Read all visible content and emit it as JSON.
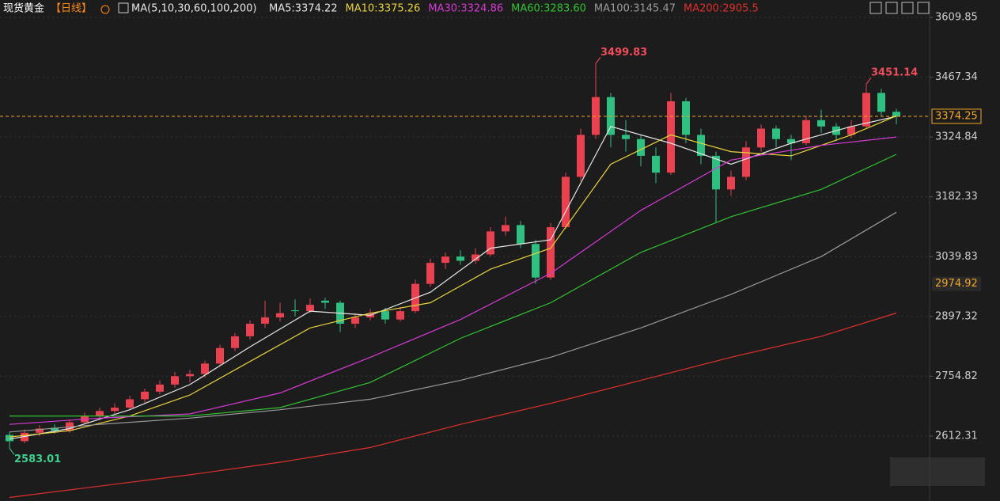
{
  "header": {
    "title": "现货黄金",
    "period": "【日线】",
    "indicator": "MA(5,10,30,60,100,200)"
  },
  "chart_data": {
    "type": "candlestick",
    "ylim": [
      2457.5,
      3651.4
    ],
    "yticks": [
      2612.31,
      2754.82,
      2897.32,
      3039.83,
      3182.33,
      3324.84,
      3467.34,
      3609.85
    ],
    "grid": true,
    "up_color": "#e8414f",
    "down_color": "#2fbf80",
    "candles": [
      [
        2615,
        2622,
        2583.01,
        2600
      ],
      [
        2600,
        2628,
        2595,
        2620
      ],
      [
        2620,
        2638,
        2612,
        2630
      ],
      [
        2632,
        2640,
        2618,
        2625
      ],
      [
        2625,
        2652,
        2620,
        2645
      ],
      [
        2645,
        2668,
        2640,
        2660
      ],
      [
        2660,
        2680,
        2652,
        2672
      ],
      [
        2672,
        2690,
        2665,
        2680
      ],
      [
        2680,
        2708,
        2675,
        2700
      ],
      [
        2700,
        2725,
        2692,
        2718
      ],
      [
        2718,
        2745,
        2712,
        2735
      ],
      [
        2735,
        2765,
        2728,
        2755
      ],
      [
        2755,
        2770,
        2740,
        2760
      ],
      [
        2760,
        2792,
        2752,
        2785
      ],
      [
        2785,
        2830,
        2780,
        2822
      ],
      [
        2822,
        2858,
        2815,
        2850
      ],
      [
        2850,
        2888,
        2842,
        2880
      ],
      [
        2880,
        2935,
        2870,
        2895
      ],
      [
        2895,
        2930,
        2885,
        2905
      ],
      [
        2912,
        2938,
        2898,
        2910
      ],
      [
        2910,
        2940,
        2905,
        2925
      ],
      [
        2935,
        2942,
        2915,
        2930
      ],
      [
        2930,
        2935,
        2860,
        2880
      ],
      [
        2880,
        2905,
        2870,
        2895
      ],
      [
        2895,
        2915,
        2888,
        2905
      ],
      [
        2910,
        2918,
        2880,
        2890
      ],
      [
        2890,
        2920,
        2885,
        2910
      ],
      [
        2910,
        2985,
        2905,
        2975
      ],
      [
        2975,
        3035,
        2968,
        3025
      ],
      [
        3025,
        3050,
        3010,
        3040
      ],
      [
        3040,
        3055,
        3020,
        3030
      ],
      [
        3030,
        3060,
        3022,
        3045
      ],
      [
        3045,
        3110,
        3040,
        3100
      ],
      [
        3100,
        3135,
        3090,
        3115
      ],
      [
        3115,
        3125,
        3060,
        3070
      ],
      [
        3070,
        3080,
        2975,
        2990
      ],
      [
        2990,
        3120,
        2985,
        3110
      ],
      [
        3110,
        3240,
        3105,
        3230
      ],
      [
        3230,
        3345,
        3220,
        3330
      ],
      [
        3330,
        3499.83,
        3320,
        3420
      ],
      [
        3420,
        3430,
        3300,
        3330
      ],
      [
        3330,
        3365,
        3290,
        3320
      ],
      [
        3320,
        3330,
        3255,
        3280
      ],
      [
        3280,
        3300,
        3215,
        3240
      ],
      [
        3240,
        3430,
        3235,
        3410
      ],
      [
        3410,
        3418,
        3310,
        3330
      ],
      [
        3330,
        3345,
        3260,
        3280
      ],
      [
        3280,
        3290,
        3120,
        3200
      ],
      [
        3200,
        3245,
        3185,
        3230
      ],
      [
        3230,
        3315,
        3222,
        3300
      ],
      [
        3300,
        3355,
        3290,
        3345
      ],
      [
        3345,
        3352,
        3300,
        3320
      ],
      [
        3320,
        3330,
        3270,
        3310
      ],
      [
        3310,
        3375,
        3305,
        3365
      ],
      [
        3365,
        3390,
        3335,
        3350
      ],
      [
        3350,
        3358,
        3315,
        3330
      ],
      [
        3330,
        3365,
        3322,
        3350
      ],
      [
        3350,
        3451.14,
        3345,
        3430
      ],
      [
        3430,
        3440,
        3375,
        3385
      ],
      [
        3385,
        3392,
        3355,
        3374.25
      ]
    ],
    "series": [
      {
        "name": "MA5:3374.22",
        "color": "#e6e6e6",
        "x": [
          0,
          4,
          8,
          12,
          16,
          20,
          24,
          28,
          32,
          36,
          40,
          44,
          48,
          52,
          56,
          59
        ],
        "values": [
          2605,
          2630,
          2675,
          2735,
          2825,
          2910,
          2900,
          2955,
          3060,
          3080,
          3350,
          3310,
          3260,
          3310,
          3350,
          3374.22
        ]
      },
      {
        "name": "MA10:3375.26",
        "color": "#e8d23c",
        "x": [
          0,
          4,
          8,
          12,
          16,
          20,
          24,
          28,
          32,
          36,
          40,
          44,
          48,
          52,
          56,
          59
        ],
        "values": [
          2610,
          2625,
          2660,
          2710,
          2790,
          2870,
          2905,
          2930,
          3010,
          3060,
          3260,
          3330,
          3290,
          3280,
          3330,
          3375.26
        ]
      },
      {
        "name": "MA30:3324.86",
        "color": "#d63ad6",
        "x": [
          0,
          6,
          12,
          18,
          24,
          30,
          36,
          42,
          48,
          54,
          59
        ],
        "values": [
          2640,
          2655,
          2665,
          2715,
          2800,
          2890,
          3000,
          3150,
          3270,
          3305,
          3324.86
        ]
      },
      {
        "name": "MA60:3283.60",
        "color": "#31c431",
        "x": [
          0,
          6,
          12,
          18,
          24,
          30,
          36,
          42,
          48,
          54,
          59
        ],
        "values": [
          2660,
          2660,
          2660,
          2680,
          2740,
          2845,
          2930,
          3050,
          3135,
          3200,
          3283.6
        ]
      },
      {
        "name": "MA100:3145.47",
        "color": "#9a9a9a",
        "x": [
          0,
          6,
          12,
          18,
          24,
          30,
          36,
          42,
          48,
          54,
          59
        ],
        "values": [
          2622,
          2640,
          2655,
          2675,
          2700,
          2745,
          2800,
          2870,
          2950,
          3040,
          3145.47
        ]
      },
      {
        "name": "MA200:2905.5",
        "color": "#e0302c",
        "x": [
          0,
          6,
          12,
          18,
          24,
          30,
          36,
          42,
          48,
          54,
          59
        ],
        "values": [
          2466,
          2493,
          2520,
          2550,
          2585,
          2640,
          2690,
          2745,
          2800,
          2850,
          2905.5
        ]
      }
    ],
    "annotations": [
      {
        "x": 39,
        "value": 3499.83,
        "color": "#ef4c5c"
      },
      {
        "x": 57,
        "value": 3451.14,
        "color": "#ef4c5c"
      },
      {
        "x": 0,
        "value": 2583.01,
        "color": "#3fcf8e"
      }
    ],
    "current_price": 3374.25,
    "marker_price": 2974.92
  }
}
